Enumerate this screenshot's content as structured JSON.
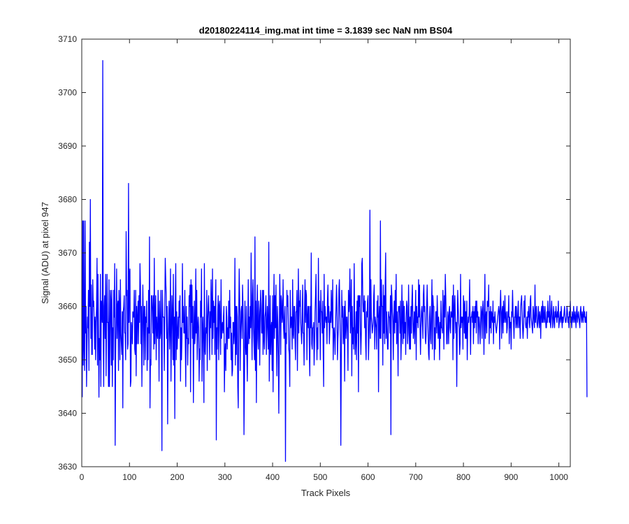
{
  "chart_data": {
    "type": "line",
    "title": "d20180224114_img.mat int time = 3.1839 sec  NaN nm BS04",
    "xlabel": "Track Pixels",
    "ylabel": "Signal (ADU) at pixel 947",
    "xlim": [
      0,
      1024
    ],
    "ylim": [
      3630,
      3710
    ],
    "xticks": [
      0,
      100,
      200,
      300,
      400,
      500,
      600,
      700,
      800,
      900,
      1000
    ],
    "yticks": [
      3630,
      3640,
      3650,
      3660,
      3670,
      3680,
      3690,
      3700,
      3710
    ],
    "grid": false,
    "legend": "none",
    "series_color": "#0000ff",
    "series": [
      {
        "x_start": 1,
        "x_step": 1,
        "values": [
          3643,
          3676,
          3649,
          3676,
          3652,
          3648,
          3676,
          3655,
          3660,
          3645,
          3653,
          3658,
          3656,
          3663,
          3648,
          3672,
          3660,
          3680,
          3654,
          3664,
          3651,
          3651,
          3665,
          3660,
          3661,
          3657,
          3652,
          3658,
          3650,
          3657,
          3660,
          3669,
          3649,
          3666,
          3655,
          3643,
          3654,
          3650,
          3666,
          3645,
          3661,
          3659,
          3657,
          3706,
          3655,
          3645,
          3660,
          3662,
          3654,
          3666,
          3647,
          3657,
          3666,
          3657,
          3657,
          3645,
          3665,
          3645,
          3653,
          3663,
          3661,
          3649,
          3663,
          3645,
          3656,
          3650,
          3663,
          3658,
          3668,
          3634,
          3651,
          3658,
          3667,
          3654,
          3660,
          3661,
          3648,
          3663,
          3660,
          3650,
          3665,
          3655,
          3653,
          3651,
          3659,
          3641,
          3659,
          3660,
          3662,
          3655,
          3655,
          3650,
          3674,
          3662,
          3663,
          3652,
          3653,
          3683,
          3657,
          3666,
          3667,
          3645,
          3646,
          3657,
          3656,
          3653,
          3659,
          3658,
          3658,
          3663,
          3652,
          3651,
          3663,
          3647,
          3660,
          3653,
          3658,
          3661,
          3653,
          3662,
          3657,
          3668,
          3664,
          3653,
          3660,
          3645,
          3655,
          3664,
          3658,
          3649,
          3660,
          3660,
          3650,
          3658,
          3657,
          3661,
          3648,
          3656,
          3650,
          3663,
          3655,
          3673,
          3641,
          3650,
          3649,
          3662,
          3662,
          3659,
          3655,
          3662,
          3652,
          3669,
          3653,
          3658,
          3662,
          3650,
          3658,
          3655,
          3654,
          3663,
          3657,
          3646,
          3661,
          3654,
          3655,
          3663,
          3655,
          3633,
          3663,
          3658,
          3658,
          3658,
          3648,
          3660,
          3669,
          3665,
          3662,
          3654,
          3660,
          3638,
          3653,
          3657,
          3661,
          3652,
          3656,
          3667,
          3646,
          3655,
          3662,
          3658,
          3650,
          3666,
          3649,
          3658,
          3639,
          3660,
          3668,
          3650,
          3659,
          3652,
          3655,
          3658,
          3654,
          3661,
          3658,
          3662,
          3646,
          3656,
          3650,
          3654,
          3668,
          3657,
          3660,
          3655,
          3655,
          3663,
          3653,
          3645,
          3660,
          3654,
          3658,
          3649,
          3654,
          3653,
          3662,
          3660,
          3664,
          3644,
          3665,
          3657,
          3664,
          3654,
          3660,
          3642,
          3655,
          3661,
          3653,
          3655,
          3667,
          3655,
          3663,
          3650,
          3656,
          3658,
          3656,
          3646,
          3652,
          3650,
          3661,
          3658,
          3667,
          3646,
          3655,
          3658,
          3653,
          3642,
          3668,
          3652,
          3651,
          3656,
          3655,
          3663,
          3648,
          3657,
          3660,
          3662,
          3656,
          3650,
          3659,
          3656,
          3665,
          3660,
          3651,
          3667,
          3654,
          3661,
          3657,
          3660,
          3651,
          3660,
          3665,
          3635,
          3656,
          3652,
          3659,
          3662,
          3650,
          3660,
          3661,
          3656,
          3651,
          3665,
          3654,
          3656,
          3657,
          3655,
          3658,
          3660,
          3644,
          3651,
          3653,
          3648,
          3660,
          3658,
          3652,
          3656,
          3654,
          3661,
          3654,
          3663,
          3656,
          3658,
          3650,
          3655,
          3647,
          3648,
          3657,
          3657,
          3653,
          3655,
          3669,
          3649,
          3660,
          3651,
          3660,
          3658,
          3645,
          3641,
          3658,
          3667,
          3661,
          3648,
          3655,
          3659,
          3660,
          3654,
          3664,
          3660,
          3655,
          3636,
          3646,
          3661,
          3653,
          3651,
          3660,
          3651,
          3646,
          3656,
          3665,
          3653,
          3658,
          3654,
          3660,
          3656,
          3670,
          3658,
          3650,
          3662,
          3665,
          3656,
          3653,
          3650,
          3673,
          3648,
          3661,
          3642,
          3658,
          3664,
          3654,
          3652,
          3661,
          3659,
          3649,
          3658,
          3663,
          3660,
          3655,
          3655,
          3663,
          3651,
          3663,
          3654,
          3652,
          3658,
          3659,
          3662,
          3651,
          3656,
          3660,
          3656,
          3652,
          3672,
          3646,
          3653,
          3662,
          3651,
          3656,
          3657,
          3648,
          3662,
          3644,
          3658,
          3666,
          3654,
          3662,
          3656,
          3664,
          3655,
          3647,
          3660,
          3657,
          3651,
          3640,
          3654,
          3666,
          3660,
          3651,
          3662,
          3661,
          3657,
          3658,
          3665,
          3656,
          3654,
          3658,
          3660,
          3631,
          3655,
          3653,
          3663,
          3660,
          3662,
          3657,
          3652,
          3651,
          3645,
          3663,
          3656,
          3658,
          3658,
          3652,
          3665,
          3655,
          3654,
          3660,
          3660,
          3654,
          3650,
          3659,
          3659,
          3663,
          3648,
          3657,
          3667,
          3655,
          3661,
          3660,
          3663,
          3657,
          3655,
          3653,
          3658,
          3664,
          3655,
          3655,
          3649,
          3660,
          3665,
          3657,
          3663,
          3662,
          3650,
          3658,
          3660,
          3656,
          3660,
          3651,
          3647,
          3660,
          3656,
          3670,
          3653,
          3652,
          3656,
          3656,
          3657,
          3649,
          3653,
          3659,
          3662,
          3666,
          3655,
          3650,
          3656,
          3652,
          3669,
          3657,
          3661,
          3658,
          3650,
          3663,
          3659,
          3659,
          3655,
          3661,
          3652,
          3645,
          3666,
          3656,
          3660,
          3658,
          3657,
          3658,
          3653,
          3661,
          3664,
          3657,
          3660,
          3653,
          3656,
          3659,
          3657,
          3663,
          3659,
          3656,
          3665,
          3650,
          3655,
          3656,
          3654,
          3651,
          3657,
          3660,
          3664,
          3660,
          3650,
          3654,
          3656,
          3663,
          3665,
          3659,
          3654,
          3634,
          3650,
          3663,
          3658,
          3660,
          3653,
          3656,
          3660,
          3646,
          3661,
          3657,
          3654,
          3658,
          3658,
          3655,
          3648,
          3663,
          3659,
          3661,
          3667,
          3655,
          3658,
          3665,
          3647,
          3660,
          3653,
          3656,
          3652,
          3668,
          3657,
          3651,
          3654,
          3659,
          3650,
          3661,
          3655,
          3662,
          3644,
          3662,
          3660,
          3662,
          3655,
          3651,
          3655,
          3668,
          3669,
          3662,
          3659,
          3659,
          3662,
          3656,
          3661,
          3653,
          3650,
          3659,
          3658,
          3661,
          3662,
          3650,
          3654,
          3658,
          3678,
          3654,
          3665,
          3658,
          3657,
          3655,
          3656,
          3657,
          3662,
          3664,
          3652,
          3658,
          3657,
          3656,
          3652,
          3661,
          3658,
          3662,
          3644,
          3658,
          3660,
          3654,
          3676,
          3654,
          3665,
          3660,
          3660,
          3649,
          3664,
          3655,
          3662,
          3653,
          3664,
          3670,
          3654,
          3659,
          3656,
          3652,
          3652,
          3659,
          3658,
          3658,
          3655,
          3662,
          3636,
          3664,
          3662,
          3659,
          3657,
          3650,
          3658,
          3661,
          3655,
          3663,
          3657,
          3666,
          3653,
          3659,
          3656,
          3647,
          3660,
          3659,
          3660,
          3655,
          3661,
          3650,
          3654,
          3664,
          3658,
          3653,
          3661,
          3654,
          3660,
          3655,
          3657,
          3651,
          3658,
          3661,
          3660,
          3653,
          3655,
          3664,
          3657,
          3652,
          3658,
          3652,
          3660,
          3655,
          3661,
          3664,
          3658,
          3654,
          3656,
          3659,
          3653,
          3659,
          3663,
          3650,
          3660,
          3657,
          3658,
          3656,
          3665,
          3658,
          3664,
          3656,
          3651,
          3656,
          3659,
          3660,
          3657,
          3654,
          3662,
          3664,
          3659,
          3660,
          3654,
          3653,
          3655,
          3660,
          3664,
          3659,
          3655,
          3651,
          3650,
          3658,
          3660,
          3654,
          3653,
          3659,
          3665,
          3652,
          3662,
          3660,
          3660,
          3650,
          3656,
          3652,
          3659,
          3659,
          3655,
          3662,
          3658,
          3654,
          3658,
          3656,
          3650,
          3657,
          3654,
          3661,
          3656,
          3656,
          3655,
          3663,
          3659,
          3652,
          3662,
          3658,
          3666,
          3662,
          3657,
          3653,
          3653,
          3659,
          3658,
          3653,
          3659,
          3660,
          3656,
          3655,
          3659,
          3658,
          3658,
          3662,
          3650,
          3664,
          3654,
          3659,
          3662,
          3658,
          3655,
          3657,
          3645,
          3655,
          3663,
          3660,
          3657,
          3656,
          3651,
          3653,
          3666,
          3656,
          3658,
          3657,
          3658,
          3652,
          3662,
          3660,
          3655,
          3661,
          3654,
          3659,
          3654,
          3661,
          3650,
          3656,
          3658,
          3657,
          3659,
          3665,
          3657,
          3651,
          3658,
          3658,
          3659,
          3657,
          3660,
          3653,
          3659,
          3656,
          3660,
          3657,
          3661,
          3655,
          3661,
          3658,
          3659,
          3653,
          3658,
          3658,
          3656,
          3653,
          3657,
          3660,
          3659,
          3654,
          3659,
          3661,
          3658,
          3651,
          3659,
          3666,
          3654,
          3658,
          3659,
          3655,
          3661,
          3660,
          3660,
          3664,
          3653,
          3659,
          3656,
          3660,
          3655,
          3659,
          3658,
          3657,
          3661,
          3653,
          3658,
          3657,
          3659,
          3657,
          3656,
          3655,
          3656,
          3657,
          3658,
          3659,
          3660,
          3659,
          3652,
          3660,
          3663,
          3659,
          3654,
          3659,
          3660,
          3655,
          3661,
          3657,
          3658,
          3662,
          3657,
          3658,
          3659,
          3655,
          3656,
          3659,
          3658,
          3662,
          3653,
          3658,
          3656,
          3657,
          3652,
          3659,
          3658,
          3663,
          3659,
          3657,
          3654,
          3658,
          3658,
          3660,
          3656,
          3660,
          3657,
          3656,
          3659,
          3661,
          3656,
          3658,
          3658,
          3654,
          3660,
          3661,
          3662,
          3659,
          3656,
          3654,
          3656,
          3661,
          3658,
          3662,
          3657,
          3656,
          3656,
          3658,
          3654,
          3659,
          3658,
          3660,
          3657,
          3656,
          3661,
          3662,
          3658,
          3657,
          3656,
          3655,
          3660,
          3659,
          3657,
          3656,
          3664,
          3657,
          3659,
          3660,
          3657,
          3656,
          3657,
          3660,
          3658,
          3656,
          3659,
          3658,
          3654,
          3659,
          3660,
          3657,
          3661,
          3657,
          3660,
          3658,
          3657,
          3660,
          3658,
          3656,
          3656,
          3659,
          3657,
          3661,
          3658,
          3659,
          3657,
          3662,
          3657,
          3656,
          3659,
          3661,
          3658,
          3656,
          3658,
          3660,
          3657,
          3656,
          3659,
          3658,
          3660,
          3658,
          3657,
          3659,
          3658,
          3661,
          3656,
          3657,
          3658,
          3659,
          3657,
          3660,
          3658,
          3656,
          3658,
          3657,
          3658,
          3659,
          3660,
          3658,
          3657,
          3657,
          3658,
          3660,
          3659,
          3657,
          3658,
          3656,
          3659,
          3658,
          3661,
          3657,
          3658,
          3656,
          3659,
          3658,
          3657,
          3660,
          3658,
          3657,
          3659,
          3658,
          3656,
          3659,
          3660,
          3657,
          3658,
          3659,
          3658,
          3657,
          3656,
          3659,
          3660,
          3658,
          3657,
          3659,
          3658,
          3657,
          3660,
          3658,
          3659,
          3657,
          3658,
          3657,
          3659,
          3643
        ]
      }
    ]
  }
}
